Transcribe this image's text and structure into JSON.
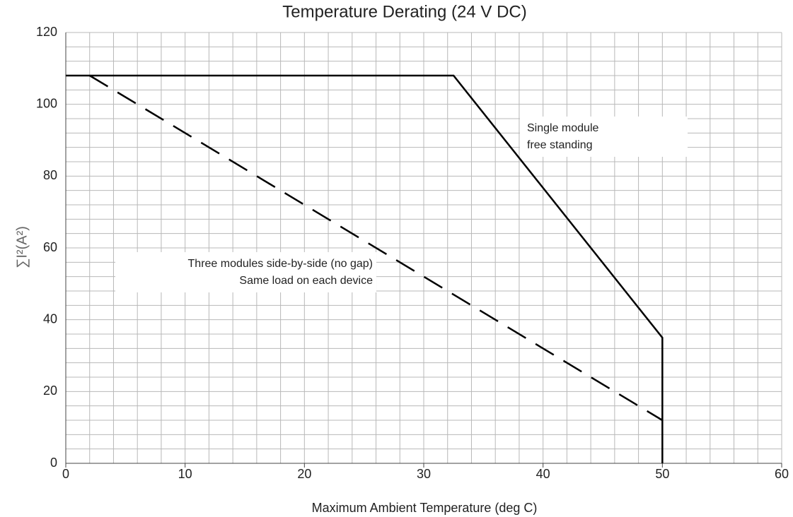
{
  "chart_data": {
    "type": "line",
    "title": "Temperature Derating (24 V DC)",
    "xlabel": "Maximum Ambient Temperature (deg C)",
    "ylabel": "∑I²(A²)",
    "xlim": [
      0,
      60
    ],
    "ylim": [
      0,
      120
    ],
    "xticks": [
      0,
      10,
      20,
      30,
      40,
      50,
      60
    ],
    "yticks": [
      0,
      20,
      40,
      60,
      80,
      100,
      120
    ],
    "xgrid": [
      0,
      2,
      4,
      6,
      8,
      10,
      12,
      14,
      16,
      18,
      20,
      22,
      24,
      26,
      28,
      30,
      32,
      34,
      36,
      38,
      40,
      42,
      44,
      46,
      48,
      50,
      52,
      54,
      56,
      58,
      60
    ],
    "ygrid": [
      0,
      4,
      8,
      12,
      16,
      20,
      24,
      28,
      32,
      36,
      40,
      44,
      48,
      52,
      56,
      60,
      64,
      68,
      72,
      76,
      80,
      84,
      88,
      92,
      96,
      100,
      104,
      108,
      112,
      116,
      120
    ],
    "grid": true,
    "series": [
      {
        "x": [
          0,
          32.5,
          50,
          50
        ],
        "values": [
          108,
          108,
          35,
          0
        ],
        "color": "#000000",
        "linestyle": "solid"
      },
      {
        "x": [
          2,
          50
        ],
        "values": [
          108,
          12
        ],
        "color": "#000000",
        "linestyle": "dashed"
      }
    ],
    "annotations": [
      {
        "lines": [
          "Single module",
          "free standing"
        ],
        "align": "left"
      },
      {
        "lines": [
          "Three modules side-by-side (no gap)",
          "Same load on each device"
        ],
        "align": "right"
      }
    ]
  }
}
